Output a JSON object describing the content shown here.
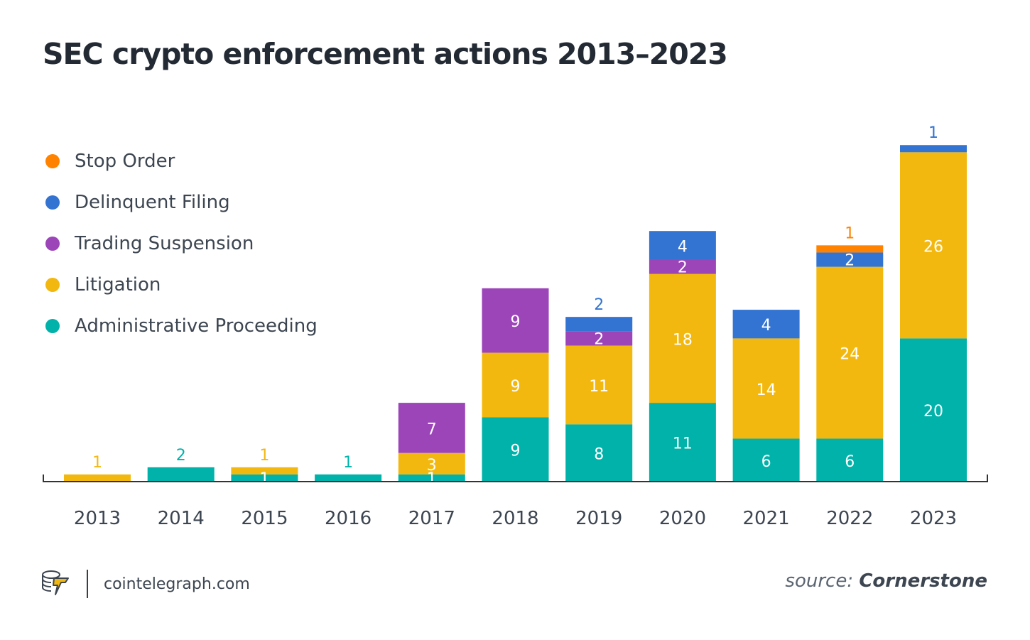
{
  "title": "SEC crypto enforcement actions 2013–2023",
  "colors": {
    "stop_order": "#FF8200",
    "delinquent_filing": "#3374D2",
    "trading_suspension": "#9B45B8",
    "litigation": "#F3B80F",
    "administrative_proceeding": "#00B2A9",
    "axis": "#333333",
    "label_dark": "#ffffff"
  },
  "legend": [
    {
      "key": "stop_order",
      "label": "Stop Order"
    },
    {
      "key": "delinquent_filing",
      "label": "Delinquent Filing"
    },
    {
      "key": "trading_suspension",
      "label": "Trading Suspension"
    },
    {
      "key": "litigation",
      "label": "Litigation"
    },
    {
      "key": "administrative_proceeding",
      "label": "Administrative Proceeding"
    }
  ],
  "chart_data": {
    "type": "bar",
    "stacked": true,
    "title": "SEC crypto enforcement actions 2013–2023",
    "xlabel": "",
    "ylabel": "",
    "ylim": [
      0,
      47
    ],
    "grid": false,
    "legend_position": "top-left",
    "categories": [
      "2013",
      "2014",
      "2015",
      "2016",
      "2017",
      "2018",
      "2019",
      "2020",
      "2021",
      "2022",
      "2023"
    ],
    "series": [
      {
        "key": "administrative_proceeding",
        "name": "Administrative Proceeding",
        "values": [
          0,
          2,
          1,
          1,
          1,
          9,
          8,
          11,
          6,
          6,
          20
        ]
      },
      {
        "key": "litigation",
        "name": "Litigation",
        "values": [
          1,
          0,
          1,
          0,
          3,
          9,
          11,
          18,
          14,
          24,
          26
        ]
      },
      {
        "key": "trading_suspension",
        "name": "Trading Suspension",
        "values": [
          0,
          0,
          0,
          0,
          7,
          9,
          2,
          2,
          0,
          0,
          0
        ]
      },
      {
        "key": "delinquent_filing",
        "name": "Delinquent Filing",
        "values": [
          0,
          0,
          0,
          0,
          0,
          0,
          2,
          4,
          4,
          2,
          1
        ]
      },
      {
        "key": "stop_order",
        "name": "Stop Order",
        "values": [
          0,
          0,
          0,
          0,
          0,
          0,
          0,
          0,
          0,
          1,
          0
        ]
      }
    ]
  },
  "footer": {
    "logo_icon": "cointelegraph-logo-icon",
    "site": "cointelegraph.com",
    "source_prefix": "source:",
    "source_name": "Cornerstone"
  }
}
